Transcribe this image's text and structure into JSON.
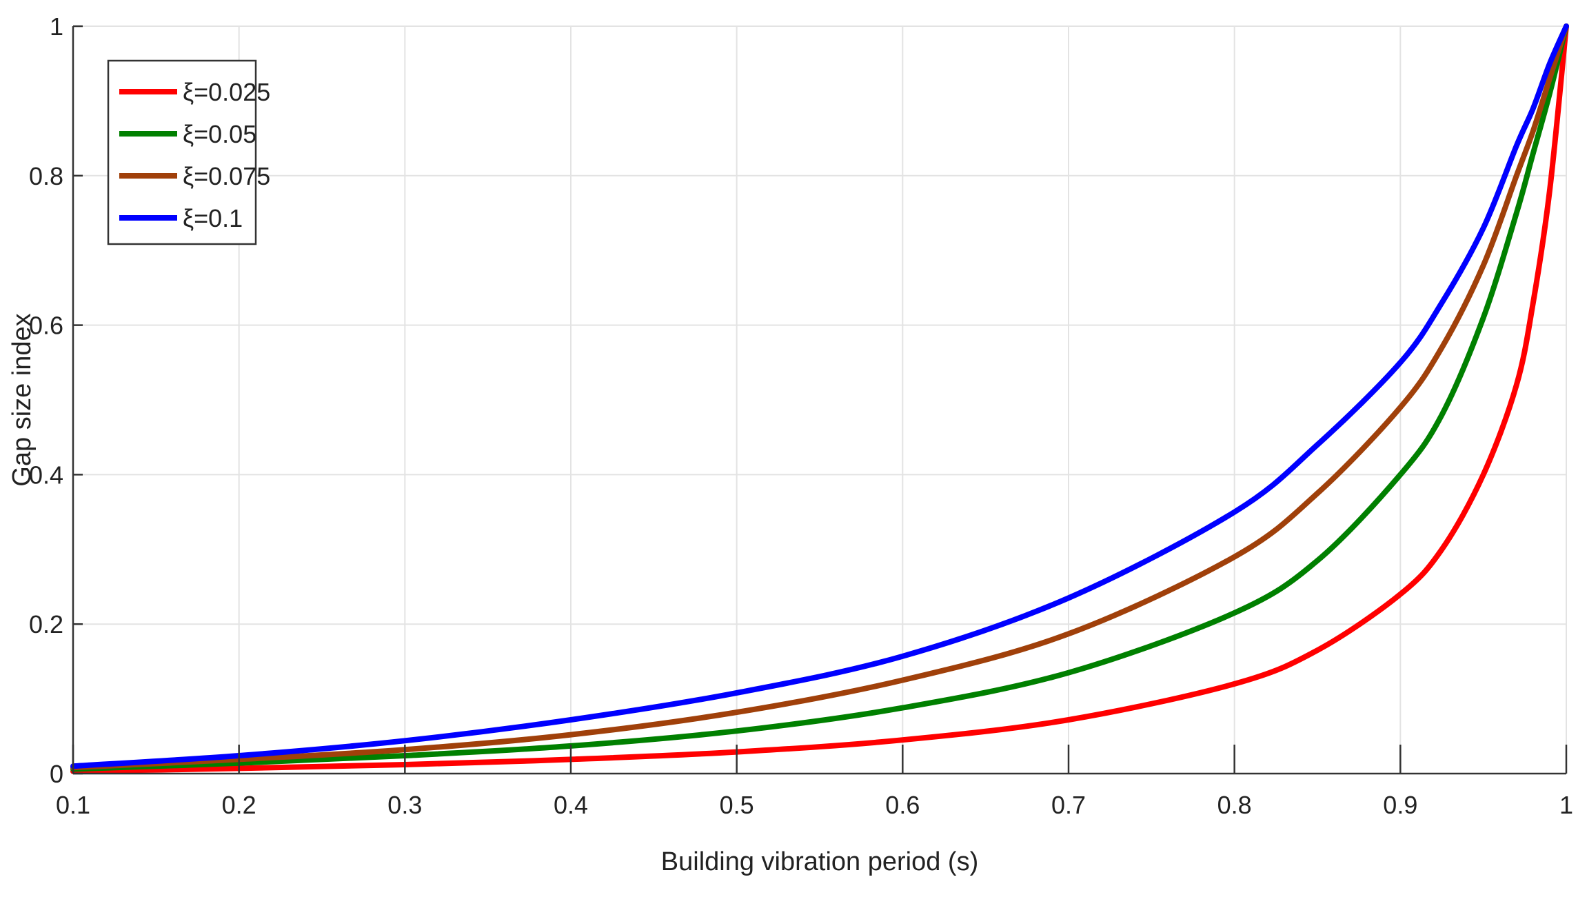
{
  "chart_data": {
    "type": "line",
    "title": "",
    "xlabel": "Building vibration period (s)",
    "ylabel": "Gap size index",
    "xlim": [
      0.1,
      1
    ],
    "ylim": [
      0,
      1
    ],
    "xticks": [
      0.1,
      0.2,
      0.3,
      0.4,
      0.5,
      0.6,
      0.7,
      0.8,
      0.9,
      1
    ],
    "xtick_labels": [
      "0.1",
      "0.2",
      "0.3",
      "0.4",
      "0.5",
      "0.6",
      "0.7",
      "0.8",
      "0.9",
      "1"
    ],
    "yticks": [
      0,
      0.2,
      0.4,
      0.6,
      0.8,
      1
    ],
    "ytick_labels": [
      "0",
      "0.2",
      "0.4",
      "0.6",
      "0.8",
      "1"
    ],
    "grid": true,
    "legend_position": "top-left",
    "x": [
      0.1,
      0.2,
      0.3,
      0.4,
      0.5,
      0.6,
      0.7,
      0.8,
      0.85,
      0.9,
      0.925,
      0.95,
      0.97,
      0.98,
      0.99,
      1.0
    ],
    "series": [
      {
        "name": "ξ=0.025",
        "color": "#ff0000",
        "values": [
          0.003,
          0.007,
          0.012,
          0.019,
          0.029,
          0.045,
          0.072,
          0.12,
          0.165,
          0.24,
          0.3,
          0.4,
          0.52,
          0.63,
          0.78,
          1.0
        ]
      },
      {
        "name": "ξ=0.05",
        "color": "#008000",
        "values": [
          0.006,
          0.014,
          0.024,
          0.037,
          0.057,
          0.088,
          0.135,
          0.215,
          0.285,
          0.4,
          0.48,
          0.61,
          0.75,
          0.83,
          0.91,
          1.0
        ]
      },
      {
        "name": "ξ=0.075",
        "color": "#a0400a",
        "values": [
          0.008,
          0.019,
          0.032,
          0.052,
          0.082,
          0.125,
          0.187,
          0.29,
          0.375,
          0.49,
          0.57,
          0.68,
          0.8,
          0.86,
          0.93,
          1.0
        ]
      },
      {
        "name": "ξ=0.1",
        "color": "#0000ff",
        "values": [
          0.01,
          0.024,
          0.044,
          0.072,
          0.108,
          0.157,
          0.235,
          0.35,
          0.44,
          0.55,
          0.63,
          0.73,
          0.84,
          0.89,
          0.95,
          1.0
        ]
      }
    ]
  }
}
